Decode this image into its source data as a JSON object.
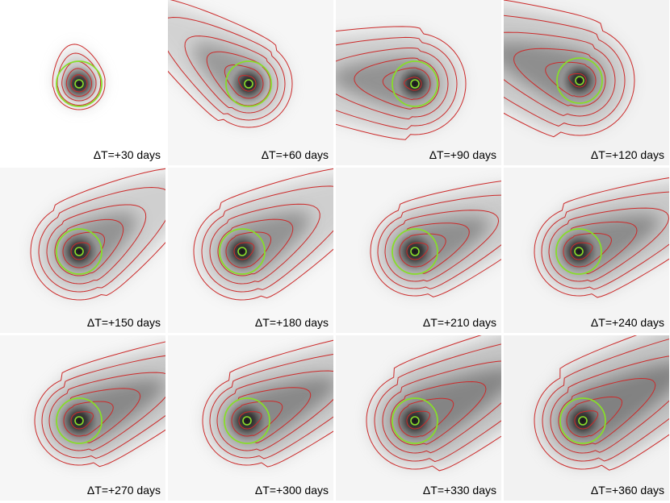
{
  "panels": [
    {
      "label": "ΔT=+30 days"
    },
    {
      "label": "ΔT=+60 days"
    },
    {
      "label": "ΔT=+90 days"
    },
    {
      "label": "ΔT=+120 days"
    },
    {
      "label": "ΔT=+150 days"
    },
    {
      "label": "ΔT=+180 days"
    },
    {
      "label": "ΔT=+210 days"
    },
    {
      "label": "ΔT=+240 days"
    },
    {
      "label": "ΔT=+270 days"
    },
    {
      "label": "ΔT=+300 days"
    },
    {
      "label": "ΔT=+330 days"
    },
    {
      "label": "ΔT=+360 days"
    }
  ],
  "colors": {
    "contour": "#cc2a2a",
    "aperture": "#88dd2a",
    "background": "#ffffff"
  }
}
